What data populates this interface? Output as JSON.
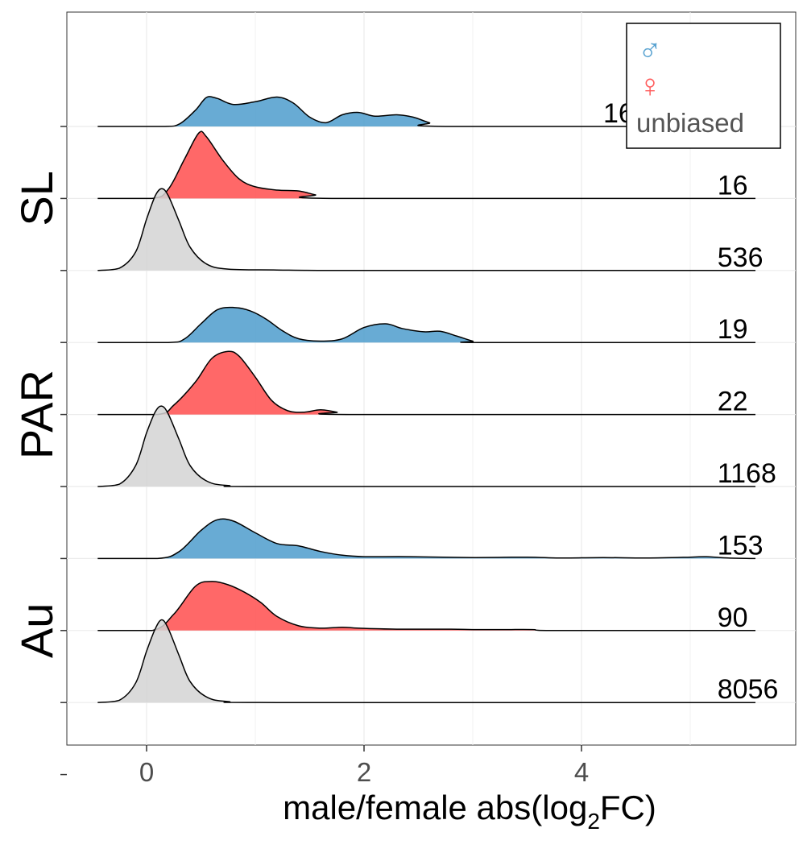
{
  "chart_data": {
    "type": "ridgeline",
    "xlabel": "male/female abs(log",
    "xlabel_sub": "2",
    "xlabel_tail": "FC)",
    "x_ticks": [
      0,
      2,
      4
    ],
    "x_tick_labels": [
      "0",
      "2",
      "4"
    ],
    "xlim": [
      -0.75,
      5.85
    ],
    "grid": true,
    "legend_position": "top-right",
    "legend": [
      {
        "label": "♂",
        "color": "#5aa3d1"
      },
      {
        "label": "♀",
        "color": "#ff5c5c"
      },
      {
        "label": "unbiased",
        "color": "#555555"
      }
    ],
    "groups": [
      {
        "label": "SL",
        "rows": [
          0,
          1,
          2
        ]
      },
      {
        "label": "PAR",
        "rows": [
          3,
          4,
          5
        ]
      },
      {
        "label": "Au",
        "rows": [
          6,
          7,
          8
        ]
      }
    ],
    "rows": [
      {
        "group": "SL",
        "category": "male",
        "count": "16",
        "label_x": 4.2,
        "color": "#4d9ccc",
        "density": [
          [
            -0.45,
            0
          ],
          [
            0.15,
            0
          ],
          [
            0.3,
            0.05
          ],
          [
            0.45,
            0.35
          ],
          [
            0.55,
            0.62
          ],
          [
            0.65,
            0.6
          ],
          [
            0.8,
            0.47
          ],
          [
            1.0,
            0.53
          ],
          [
            1.2,
            0.63
          ],
          [
            1.35,
            0.5
          ],
          [
            1.5,
            0.2
          ],
          [
            1.65,
            0.08
          ],
          [
            1.8,
            0.25
          ],
          [
            1.95,
            0.3
          ],
          [
            2.1,
            0.22
          ],
          [
            2.3,
            0.25
          ],
          [
            2.45,
            0.2
          ],
          [
            2.6,
            0.08
          ],
          [
            2.75,
            0
          ],
          [
            5.6,
            0
          ]
        ]
      },
      {
        "group": "SL",
        "category": "female",
        "count": "16",
        "label_x": 5.25,
        "color": "#ff4d4d",
        "density": [
          [
            -0.45,
            0
          ],
          [
            0.05,
            0
          ],
          [
            0.2,
            0.2
          ],
          [
            0.35,
            0.85
          ],
          [
            0.48,
            1.4
          ],
          [
            0.55,
            1.32
          ],
          [
            0.7,
            0.82
          ],
          [
            0.85,
            0.42
          ],
          [
            1.0,
            0.25
          ],
          [
            1.2,
            0.18
          ],
          [
            1.4,
            0.16
          ],
          [
            1.55,
            0.08
          ],
          [
            1.75,
            0
          ],
          [
            5.6,
            0
          ]
        ]
      },
      {
        "group": "SL",
        "category": "unbiased",
        "count": "536",
        "label_x": 5.25,
        "color": "#d3d3d3",
        "density": [
          [
            -0.45,
            0
          ],
          [
            -0.25,
            0.05
          ],
          [
            -0.1,
            0.4
          ],
          [
            0.0,
            1.1
          ],
          [
            0.08,
            1.6
          ],
          [
            0.14,
            1.75
          ],
          [
            0.2,
            1.6
          ],
          [
            0.3,
            1.05
          ],
          [
            0.4,
            0.5
          ],
          [
            0.55,
            0.14
          ],
          [
            0.75,
            0.03
          ],
          [
            1.2,
            0.01
          ],
          [
            2.0,
            0
          ],
          [
            5.6,
            0
          ]
        ]
      },
      {
        "group": "PAR",
        "category": "male",
        "count": "19",
        "label_x": 5.25,
        "color": "#4d9ccc",
        "density": [
          [
            -0.45,
            0
          ],
          [
            0.2,
            0
          ],
          [
            0.35,
            0.08
          ],
          [
            0.5,
            0.4
          ],
          [
            0.65,
            0.7
          ],
          [
            0.8,
            0.75
          ],
          [
            0.95,
            0.68
          ],
          [
            1.1,
            0.5
          ],
          [
            1.25,
            0.25
          ],
          [
            1.4,
            0.08
          ],
          [
            1.6,
            0.03
          ],
          [
            1.8,
            0.08
          ],
          [
            2.0,
            0.32
          ],
          [
            2.2,
            0.4
          ],
          [
            2.35,
            0.3
          ],
          [
            2.55,
            0.23
          ],
          [
            2.7,
            0.24
          ],
          [
            2.85,
            0.14
          ],
          [
            3.0,
            0.03
          ],
          [
            3.1,
            0
          ],
          [
            5.6,
            0
          ]
        ]
      },
      {
        "group": "PAR",
        "category": "female",
        "count": "22",
        "label_x": 5.25,
        "color": "#ff4d4d",
        "density": [
          [
            -0.45,
            0
          ],
          [
            0.1,
            0
          ],
          [
            0.25,
            0.2
          ],
          [
            0.45,
            0.7
          ],
          [
            0.6,
            1.2
          ],
          [
            0.75,
            1.35
          ],
          [
            0.85,
            1.25
          ],
          [
            1.0,
            0.8
          ],
          [
            1.15,
            0.3
          ],
          [
            1.3,
            0.08
          ],
          [
            1.45,
            0.05
          ],
          [
            1.6,
            0.1
          ],
          [
            1.75,
            0.05
          ],
          [
            1.9,
            0
          ],
          [
            5.6,
            0
          ]
        ]
      },
      {
        "group": "PAR",
        "category": "unbiased",
        "count": "1168",
        "label_x": 5.25,
        "color": "#d3d3d3",
        "density": [
          [
            -0.45,
            0
          ],
          [
            -0.25,
            0.05
          ],
          [
            -0.1,
            0.45
          ],
          [
            0.0,
            1.15
          ],
          [
            0.08,
            1.6
          ],
          [
            0.14,
            1.72
          ],
          [
            0.2,
            1.55
          ],
          [
            0.3,
            1.0
          ],
          [
            0.4,
            0.45
          ],
          [
            0.55,
            0.12
          ],
          [
            0.75,
            0.02
          ],
          [
            1.2,
            0
          ],
          [
            5.6,
            0
          ]
        ]
      },
      {
        "group": "Au",
        "category": "male",
        "count": "153",
        "label_x": 5.25,
        "color": "#4d9ccc",
        "density": [
          [
            -0.45,
            0
          ],
          [
            0.1,
            0
          ],
          [
            0.3,
            0.15
          ],
          [
            0.5,
            0.6
          ],
          [
            0.65,
            0.83
          ],
          [
            0.8,
            0.8
          ],
          [
            1.0,
            0.55
          ],
          [
            1.2,
            0.32
          ],
          [
            1.4,
            0.27
          ],
          [
            1.6,
            0.15
          ],
          [
            1.8,
            0.07
          ],
          [
            2.0,
            0.04
          ],
          [
            2.4,
            0.04
          ],
          [
            3.0,
            0.02
          ],
          [
            3.5,
            0.03
          ],
          [
            3.8,
            0.01
          ],
          [
            4.2,
            0.02
          ],
          [
            4.6,
            0.01
          ],
          [
            5.0,
            0.03
          ],
          [
            5.15,
            0.04
          ],
          [
            5.35,
            0.01
          ],
          [
            5.6,
            0
          ]
        ]
      },
      {
        "group": "Au",
        "category": "female",
        "count": "90",
        "label_x": 5.25,
        "color": "#ff4d4d",
        "density": [
          [
            -0.45,
            0
          ],
          [
            0.05,
            0
          ],
          [
            0.25,
            0.35
          ],
          [
            0.45,
            0.95
          ],
          [
            0.6,
            1.05
          ],
          [
            0.75,
            0.98
          ],
          [
            0.9,
            0.82
          ],
          [
            1.05,
            0.6
          ],
          [
            1.2,
            0.3
          ],
          [
            1.4,
            0.1
          ],
          [
            1.6,
            0.05
          ],
          [
            1.8,
            0.07
          ],
          [
            1.95,
            0.05
          ],
          [
            2.3,
            0.03
          ],
          [
            2.8,
            0.03
          ],
          [
            3.0,
            0.02
          ],
          [
            3.3,
            0.02
          ],
          [
            3.55,
            0.02
          ],
          [
            3.8,
            0
          ],
          [
            5.6,
            0
          ]
        ]
      },
      {
        "group": "Au",
        "category": "unbiased",
        "count": "8056",
        "label_x": 5.25,
        "color": "#d3d3d3",
        "density": [
          [
            -0.45,
            0
          ],
          [
            -0.25,
            0.05
          ],
          [
            -0.1,
            0.42
          ],
          [
            0.0,
            1.1
          ],
          [
            0.08,
            1.58
          ],
          [
            0.14,
            1.77
          ],
          [
            0.2,
            1.58
          ],
          [
            0.3,
            1.0
          ],
          [
            0.4,
            0.45
          ],
          [
            0.55,
            0.12
          ],
          [
            0.75,
            0.02
          ],
          [
            1.2,
            0
          ],
          [
            5.6,
            0
          ]
        ]
      }
    ]
  }
}
